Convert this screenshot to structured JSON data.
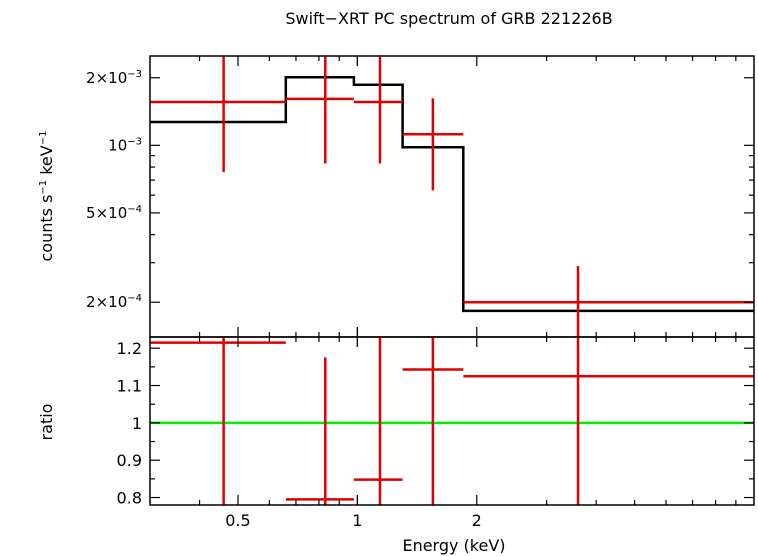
{
  "chart_data": [
    {
      "type": "line",
      "title": "Swift−XRT PC spectrum of GRB 221226B",
      "ylabel_parts": [
        "counts s",
        "−1",
        " keV",
        "−1"
      ],
      "xscale": "log",
      "yscale": "log",
      "xlim": [
        0.3,
        10
      ],
      "ylim": [
        0.00014,
        0.0025
      ],
      "yticks": [
        {
          "value": 0.0002,
          "label": "2×10",
          "exp": "−4"
        },
        {
          "value": 0.0005,
          "label": "5×10",
          "exp": "−4"
        },
        {
          "value": 0.001,
          "label": "10",
          "exp": "−3"
        },
        {
          "value": 0.002,
          "label": "2×10",
          "exp": "−3"
        }
      ],
      "series": [
        {
          "kind": "model",
          "color": "#000000",
          "steps": [
            {
              "x0": 0.3,
              "x1": 0.66,
              "y": 0.00127
            },
            {
              "x0": 0.66,
              "x1": 0.98,
              "y": 0.00201
            },
            {
              "x0": 0.98,
              "x1": 1.3,
              "y": 0.00186
            },
            {
              "x0": 1.3,
              "x1": 1.85,
              "y": 0.00098
            },
            {
              "x0": 1.85,
              "x1": 10,
              "y": 0.000183
            }
          ]
        },
        {
          "kind": "data",
          "color": "#e00000",
          "points": [
            {
              "x": 0.46,
              "xlo": 0.3,
              "xhi": 0.66,
              "y": 0.00156,
              "ylo": 0.00076,
              "yhi": 0.00248
            },
            {
              "x": 0.83,
              "xlo": 0.66,
              "xhi": 0.98,
              "y": 0.00161,
              "ylo": 0.00083,
              "yhi": 0.00248
            },
            {
              "x": 1.14,
              "xlo": 0.98,
              "xhi": 1.3,
              "y": 0.00156,
              "ylo": 0.00083,
              "yhi": 0.00248
            },
            {
              "x": 1.55,
              "xlo": 1.3,
              "xhi": 1.85,
              "y": 0.00112,
              "ylo": 0.00063,
              "yhi": 0.00162
            },
            {
              "x": 3.6,
              "xlo": 1.85,
              "xhi": 10,
              "y": 0.0002,
              "ylo": 0.00014,
              "yhi": 0.00029
            }
          ]
        }
      ]
    },
    {
      "type": "line",
      "xlabel": "Energy (keV)",
      "ylabel": "ratio",
      "xscale": "log",
      "xlim": [
        0.3,
        10
      ],
      "ylim": [
        0.78,
        1.23
      ],
      "xticks": [
        {
          "value": 0.5,
          "label": "0.5"
        },
        {
          "value": 1,
          "label": "1"
        },
        {
          "value": 2,
          "label": "2"
        }
      ],
      "yticks": [
        {
          "value": 0.8,
          "label": "0.8"
        },
        {
          "value": 0.9,
          "label": "0.9"
        },
        {
          "value": 1.0,
          "label": "1"
        },
        {
          "value": 1.1,
          "label": "1.1"
        },
        {
          "value": 1.2,
          "label": "1.2"
        }
      ],
      "reference_line": {
        "y": 1.0,
        "color": "#00ee00"
      },
      "series": [
        {
          "kind": "data",
          "color": "#e00000",
          "points": [
            {
              "x": 0.46,
              "xlo": 0.3,
              "xhi": 0.66,
              "y": 1.215,
              "ylo": 0.78,
              "yhi": 1.23
            },
            {
              "x": 0.83,
              "xlo": 0.66,
              "xhi": 0.98,
              "y": 0.795,
              "ylo": 0.78,
              "yhi": 1.175
            },
            {
              "x": 1.14,
              "xlo": 0.98,
              "xhi": 1.3,
              "y": 0.848,
              "ylo": 0.78,
              "yhi": 1.23
            },
            {
              "x": 1.55,
              "xlo": 1.3,
              "xhi": 1.85,
              "y": 1.143,
              "ylo": 0.78,
              "yhi": 1.23
            },
            {
              "x": 3.6,
              "xlo": 1.85,
              "xhi": 10,
              "y": 1.125,
              "ylo": 0.78,
              "yhi": 1.23
            }
          ]
        }
      ]
    }
  ]
}
